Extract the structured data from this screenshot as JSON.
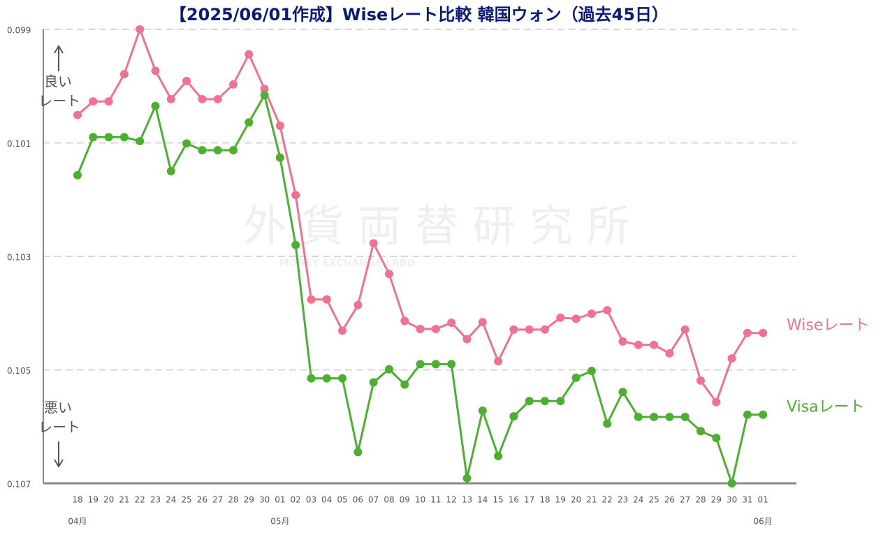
{
  "chart_data": {
    "type": "line",
    "title": "【2025/06/01作成】Wiseレート比較 韓国ウォン（過去45日）",
    "categories": [
      "18",
      "19",
      "20",
      "21",
      "22",
      "23",
      "24",
      "25",
      "26",
      "27",
      "28",
      "29",
      "30",
      "01",
      "02",
      "03",
      "04",
      "05",
      "06",
      "07",
      "08",
      "09",
      "10",
      "11",
      "12",
      "13",
      "14",
      "15",
      "16",
      "17",
      "18",
      "19",
      "20",
      "21",
      "22",
      "23",
      "24",
      "25",
      "26",
      "27",
      "28",
      "29",
      "30",
      "31",
      "01"
    ],
    "months": [
      "04月",
      null,
      null,
      null,
      null,
      null,
      null,
      null,
      null,
      null,
      null,
      null,
      null,
      "05月",
      null,
      null,
      null,
      null,
      null,
      null,
      null,
      null,
      null,
      null,
      null,
      null,
      null,
      null,
      null,
      null,
      null,
      null,
      null,
      null,
      null,
      null,
      null,
      null,
      null,
      null,
      null,
      null,
      null,
      null,
      "06月"
    ],
    "series": [
      {
        "name": "Wiseレート",
        "color": "#f0728f",
        "values": [
          0.10051,
          0.10027,
          0.10027,
          0.09979,
          0.099,
          0.09973,
          0.10023,
          0.09991,
          0.10023,
          0.10023,
          0.09997,
          0.09944,
          0.10005,
          0.1007,
          0.10192,
          0.10376,
          0.10376,
          0.10431,
          0.10386,
          0.10277,
          0.10331,
          0.10414,
          0.10428,
          0.10428,
          0.10417,
          0.10446,
          0.10416,
          0.10485,
          0.10429,
          0.10429,
          0.10429,
          0.10408,
          0.1041,
          0.10401,
          0.10395,
          0.1045,
          0.10456,
          0.10456,
          0.10471,
          0.10429,
          0.10519,
          0.10557,
          0.1048,
          0.10435,
          0.10435
        ]
      },
      {
        "name": "Visaレート",
        "color": "#4caf30",
        "values": [
          0.10157,
          0.1009,
          0.1009,
          0.1009,
          0.10097,
          0.10035,
          0.1015,
          0.10101,
          0.10113,
          0.10113,
          0.10113,
          0.10064,
          0.10016,
          0.10126,
          0.1028,
          0.10515,
          0.10515,
          0.10515,
          0.10645,
          0.10522,
          0.10499,
          0.10526,
          0.1049,
          0.1049,
          0.1049,
          0.10691,
          0.10572,
          0.10652,
          0.10582,
          0.10555,
          0.10555,
          0.10555,
          0.10514,
          0.10502,
          0.10595,
          0.10539,
          0.10583,
          0.10583,
          0.10583,
          0.10583,
          0.10608,
          0.1062,
          0.107,
          0.10579,
          0.10579
        ]
      }
    ],
    "ylim": [
      0.107,
      0.099
    ],
    "yticks": [
      0.099,
      0.101,
      0.103,
      0.105,
      0.107
    ],
    "grid": true,
    "annotations": {
      "good": [
        "良い",
        "レート"
      ],
      "bad": [
        "悪い",
        "レート"
      ]
    },
    "watermark": [
      "外貨両替研究所",
      "MONEY EXCHANGE LABO"
    ]
  }
}
